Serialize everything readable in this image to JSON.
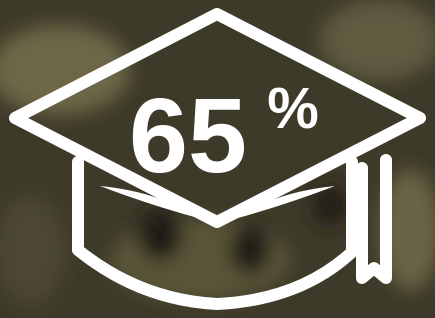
{
  "badge": {
    "number": "65",
    "unit": "%"
  }
}
